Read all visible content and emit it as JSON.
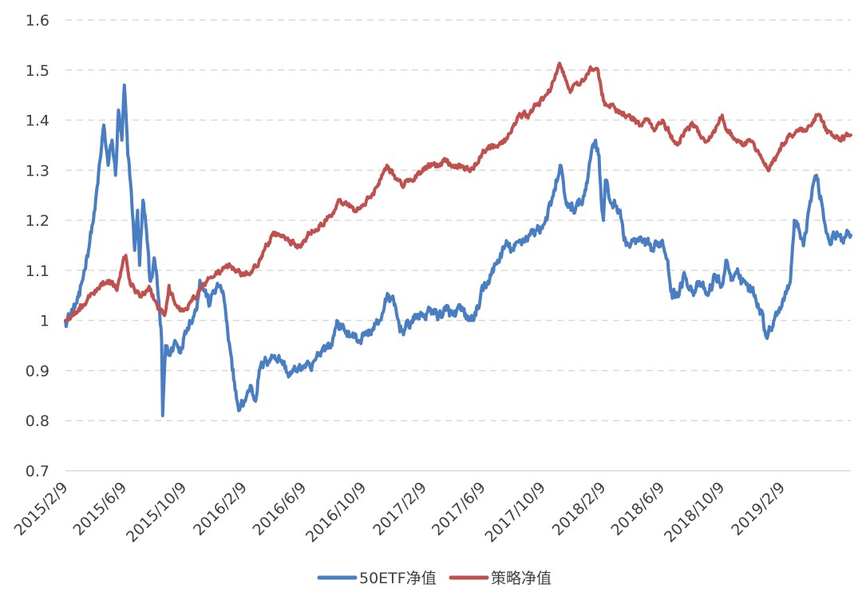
{
  "chart_data": {
    "type": "line",
    "title": "",
    "xlabel": "",
    "ylabel": "",
    "ylim": [
      0.7,
      1.6
    ],
    "yticks": [
      "0.7",
      "0.8",
      "0.9",
      "1",
      "1.1",
      "1.2",
      "1.3",
      "1.4",
      "1.5",
      "1.6"
    ],
    "xtick_labels": [
      "2015/2/9",
      "2015/6/9",
      "2015/10/9",
      "2016/2/9",
      "2016/6/9",
      "2016/10/9",
      "2017/2/9",
      "2017/6/9",
      "2017/10/9",
      "2018/2/9",
      "2018/6/9",
      "2018/10/9",
      "2019/2/9"
    ],
    "xlim": [
      "2015-02-09",
      "2019-06-28"
    ],
    "grid": true,
    "legend_position": "bottom",
    "series": [
      {
        "name": "50ETF净值",
        "color": "#4A7EC2",
        "points": [
          [
            "2015-02-09",
            1.0
          ],
          [
            "2015-02-25",
            1.02
          ],
          [
            "2015-03-10",
            1.05
          ],
          [
            "2015-03-25",
            1.13
          ],
          [
            "2015-04-10",
            1.22
          ],
          [
            "2015-04-22",
            1.33
          ],
          [
            "2015-04-28",
            1.39
          ],
          [
            "2015-05-07",
            1.31
          ],
          [
            "2015-05-15",
            1.36
          ],
          [
            "2015-05-22",
            1.29
          ],
          [
            "2015-05-28",
            1.42
          ],
          [
            "2015-06-04",
            1.36
          ],
          [
            "2015-06-09",
            1.47
          ],
          [
            "2015-06-16",
            1.33
          ],
          [
            "2015-06-23",
            1.26
          ],
          [
            "2015-06-30",
            1.14
          ],
          [
            "2015-07-06",
            1.22
          ],
          [
            "2015-07-10",
            1.11
          ],
          [
            "2015-07-17",
            1.24
          ],
          [
            "2015-07-24",
            1.18
          ],
          [
            "2015-07-31",
            1.08
          ],
          [
            "2015-08-10",
            1.12
          ],
          [
            "2015-08-17",
            1.05
          ],
          [
            "2015-08-24",
            0.96
          ],
          [
            "2015-08-26",
            0.81
          ],
          [
            "2015-09-01",
            0.95
          ],
          [
            "2015-09-10",
            0.93
          ],
          [
            "2015-09-20",
            0.96
          ],
          [
            "2015-09-30",
            0.94
          ],
          [
            "2015-10-09",
            0.97
          ],
          [
            "2015-10-20",
            1.0
          ],
          [
            "2015-11-02",
            1.02
          ],
          [
            "2015-11-10",
            1.08
          ],
          [
            "2015-11-20",
            1.06
          ],
          [
            "2015-11-30",
            1.03
          ],
          [
            "2015-12-08",
            1.06
          ],
          [
            "2015-12-22",
            1.07
          ],
          [
            "2015-12-31",
            1.03
          ],
          [
            "2016-01-07",
            0.96
          ],
          [
            "2016-01-15",
            0.9
          ],
          [
            "2016-01-22",
            0.86
          ],
          [
            "2016-01-28",
            0.82
          ],
          [
            "2016-02-09",
            0.84
          ],
          [
            "2016-02-22",
            0.87
          ],
          [
            "2016-03-01",
            0.84
          ],
          [
            "2016-03-10",
            0.9
          ],
          [
            "2016-03-25",
            0.92
          ],
          [
            "2016-04-10",
            0.93
          ],
          [
            "2016-04-25",
            0.92
          ],
          [
            "2016-05-10",
            0.89
          ],
          [
            "2016-05-25",
            0.9
          ],
          [
            "2016-06-09",
            0.91
          ],
          [
            "2016-06-24",
            0.9
          ],
          [
            "2016-07-08",
            0.93
          ],
          [
            "2016-07-20",
            0.95
          ],
          [
            "2016-08-05",
            0.95
          ],
          [
            "2016-08-15",
            1.0
          ],
          [
            "2016-08-30",
            0.98
          ],
          [
            "2016-09-15",
            0.97
          ],
          [
            "2016-09-30",
            0.96
          ],
          [
            "2016-10-09",
            0.97
          ],
          [
            "2016-10-25",
            0.98
          ],
          [
            "2016-11-10",
            1.0
          ],
          [
            "2016-11-20",
            1.03
          ],
          [
            "2016-11-29",
            1.05
          ],
          [
            "2016-12-10",
            1.03
          ],
          [
            "2016-12-20",
            0.99
          ],
          [
            "2016-12-30",
            0.98
          ],
          [
            "2017-01-15",
            1.0
          ],
          [
            "2017-01-31",
            1.01
          ],
          [
            "2017-02-09",
            1.01
          ],
          [
            "2017-02-25",
            1.02
          ],
          [
            "2017-03-10",
            1.01
          ],
          [
            "2017-03-25",
            1.02
          ],
          [
            "2017-04-09",
            1.01
          ],
          [
            "2017-04-25",
            1.02
          ],
          [
            "2017-05-10",
            1.0
          ],
          [
            "2017-05-25",
            1.01
          ],
          [
            "2017-06-09",
            1.06
          ],
          [
            "2017-06-25",
            1.09
          ],
          [
            "2017-07-10",
            1.12
          ],
          [
            "2017-07-25",
            1.15
          ],
          [
            "2017-08-10",
            1.14
          ],
          [
            "2017-08-25",
            1.16
          ],
          [
            "2017-09-10",
            1.17
          ],
          [
            "2017-09-25",
            1.18
          ],
          [
            "2017-10-09",
            1.19
          ],
          [
            "2017-10-25",
            1.23
          ],
          [
            "2017-11-03",
            1.26
          ],
          [
            "2017-11-13",
            1.31
          ],
          [
            "2017-11-24",
            1.24
          ],
          [
            "2017-12-05",
            1.22
          ],
          [
            "2017-12-20",
            1.23
          ],
          [
            "2017-12-29",
            1.24
          ],
          [
            "2018-01-10",
            1.3
          ],
          [
            "2018-01-18",
            1.35
          ],
          [
            "2018-01-24",
            1.36
          ],
          [
            "2018-01-31",
            1.33
          ],
          [
            "2018-02-06",
            1.22
          ],
          [
            "2018-02-09",
            1.2
          ],
          [
            "2018-02-13",
            1.28
          ],
          [
            "2018-02-22",
            1.24
          ],
          [
            "2018-03-05",
            1.23
          ],
          [
            "2018-03-15",
            1.22
          ],
          [
            "2018-03-23",
            1.16
          ],
          [
            "2018-04-05",
            1.15
          ],
          [
            "2018-04-20",
            1.16
          ],
          [
            "2018-05-05",
            1.15
          ],
          [
            "2018-05-20",
            1.14
          ],
          [
            "2018-06-09",
            1.16
          ],
          [
            "2018-06-20",
            1.12
          ],
          [
            "2018-06-28",
            1.06
          ],
          [
            "2018-07-10",
            1.05
          ],
          [
            "2018-07-25",
            1.09
          ],
          [
            "2018-08-10",
            1.06
          ],
          [
            "2018-08-25",
            1.07
          ],
          [
            "2018-09-10",
            1.05
          ],
          [
            "2018-09-25",
            1.09
          ],
          [
            "2018-10-09",
            1.07
          ],
          [
            "2018-10-18",
            1.12
          ],
          [
            "2018-10-30",
            1.08
          ],
          [
            "2018-11-15",
            1.09
          ],
          [
            "2018-11-30",
            1.07
          ],
          [
            "2018-12-15",
            1.05
          ],
          [
            "2018-12-28",
            1.02
          ],
          [
            "2019-01-04",
            0.98
          ],
          [
            "2019-01-10",
            0.97
          ],
          [
            "2019-01-25",
            1.01
          ],
          [
            "2019-02-09",
            1.04
          ],
          [
            "2019-02-25",
            1.08
          ],
          [
            "2019-03-05",
            1.2
          ],
          [
            "2019-03-15",
            1.18
          ],
          [
            "2019-03-25",
            1.16
          ],
          [
            "2019-04-05",
            1.23
          ],
          [
            "2019-04-12",
            1.27
          ],
          [
            "2019-04-19",
            1.29
          ],
          [
            "2019-04-29",
            1.24
          ],
          [
            "2019-05-07",
            1.19
          ],
          [
            "2019-05-15",
            1.16
          ],
          [
            "2019-05-25",
            1.17
          ],
          [
            "2019-06-10",
            1.16
          ],
          [
            "2019-06-20",
            1.18
          ],
          [
            "2019-06-28",
            1.17
          ]
        ]
      },
      {
        "name": "策略净值",
        "color": "#C0504D",
        "points": [
          [
            "2015-02-09",
            1.0
          ],
          [
            "2015-02-25",
            1.01
          ],
          [
            "2015-03-10",
            1.02
          ],
          [
            "2015-03-25",
            1.04
          ],
          [
            "2015-04-10",
            1.06
          ],
          [
            "2015-04-25",
            1.07
          ],
          [
            "2015-05-10",
            1.08
          ],
          [
            "2015-05-25",
            1.06
          ],
          [
            "2015-06-05",
            1.11
          ],
          [
            "2015-06-12",
            1.13
          ],
          [
            "2015-06-20",
            1.08
          ],
          [
            "2015-06-30",
            1.06
          ],
          [
            "2015-07-15",
            1.05
          ],
          [
            "2015-07-31",
            1.06
          ],
          [
            "2015-08-15",
            1.03
          ],
          [
            "2015-08-30",
            1.01
          ],
          [
            "2015-09-08",
            1.07
          ],
          [
            "2015-09-18",
            1.04
          ],
          [
            "2015-09-30",
            1.02
          ],
          [
            "2015-10-09",
            1.02
          ],
          [
            "2015-10-25",
            1.04
          ],
          [
            "2015-11-10",
            1.06
          ],
          [
            "2015-11-25",
            1.08
          ],
          [
            "2015-12-10",
            1.09
          ],
          [
            "2015-12-25",
            1.1
          ],
          [
            "2016-01-10",
            1.11
          ],
          [
            "2016-01-25",
            1.1
          ],
          [
            "2016-02-09",
            1.09
          ],
          [
            "2016-02-25",
            1.1
          ],
          [
            "2016-03-10",
            1.12
          ],
          [
            "2016-03-25",
            1.15
          ],
          [
            "2016-04-09",
            1.17
          ],
          [
            "2016-04-25",
            1.17
          ],
          [
            "2016-05-10",
            1.16
          ],
          [
            "2016-05-25",
            1.15
          ],
          [
            "2016-06-09",
            1.16
          ],
          [
            "2016-06-25",
            1.18
          ],
          [
            "2016-07-10",
            1.19
          ],
          [
            "2016-07-25",
            1.2
          ],
          [
            "2016-08-10",
            1.22
          ],
          [
            "2016-08-20",
            1.24
          ],
          [
            "2016-09-05",
            1.23
          ],
          [
            "2016-09-20",
            1.22
          ],
          [
            "2016-10-09",
            1.23
          ],
          [
            "2016-10-25",
            1.25
          ],
          [
            "2016-11-10",
            1.28
          ],
          [
            "2016-11-25",
            1.31
          ],
          [
            "2016-12-10",
            1.29
          ],
          [
            "2016-12-25",
            1.27
          ],
          [
            "2017-01-10",
            1.28
          ],
          [
            "2017-01-25",
            1.29
          ],
          [
            "2017-02-09",
            1.3
          ],
          [
            "2017-02-25",
            1.31
          ],
          [
            "2017-03-10",
            1.31
          ],
          [
            "2017-03-25",
            1.32
          ],
          [
            "2017-04-09",
            1.31
          ],
          [
            "2017-04-25",
            1.31
          ],
          [
            "2017-05-10",
            1.3
          ],
          [
            "2017-05-25",
            1.31
          ],
          [
            "2017-06-09",
            1.34
          ],
          [
            "2017-06-25",
            1.35
          ],
          [
            "2017-07-10",
            1.35
          ],
          [
            "2017-07-25",
            1.36
          ],
          [
            "2017-08-10",
            1.39
          ],
          [
            "2017-08-25",
            1.41
          ],
          [
            "2017-09-10",
            1.41
          ],
          [
            "2017-09-25",
            1.43
          ],
          [
            "2017-10-09",
            1.44
          ],
          [
            "2017-10-20",
            1.46
          ],
          [
            "2017-11-01",
            1.48
          ],
          [
            "2017-11-13",
            1.51
          ],
          [
            "2017-11-24",
            1.48
          ],
          [
            "2017-12-05",
            1.46
          ],
          [
            "2017-12-20",
            1.47
          ],
          [
            "2018-01-05",
            1.49
          ],
          [
            "2018-01-15",
            1.5
          ],
          [
            "2018-01-29",
            1.5
          ],
          [
            "2018-02-06",
            1.45
          ],
          [
            "2018-02-12",
            1.43
          ],
          [
            "2018-02-25",
            1.43
          ],
          [
            "2018-03-10",
            1.42
          ],
          [
            "2018-03-25",
            1.41
          ],
          [
            "2018-04-09",
            1.4
          ],
          [
            "2018-04-25",
            1.39
          ],
          [
            "2018-05-10",
            1.4
          ],
          [
            "2018-05-25",
            1.38
          ],
          [
            "2018-06-09",
            1.4
          ],
          [
            "2018-06-25",
            1.37
          ],
          [
            "2018-07-10",
            1.35
          ],
          [
            "2018-07-25",
            1.38
          ],
          [
            "2018-08-10",
            1.39
          ],
          [
            "2018-08-25",
            1.37
          ],
          [
            "2018-09-10",
            1.36
          ],
          [
            "2018-09-25",
            1.38
          ],
          [
            "2018-10-09",
            1.41
          ],
          [
            "2018-10-20",
            1.38
          ],
          [
            "2018-11-05",
            1.36
          ],
          [
            "2018-11-20",
            1.35
          ],
          [
            "2018-12-05",
            1.36
          ],
          [
            "2018-12-20",
            1.34
          ],
          [
            "2019-01-04",
            1.31
          ],
          [
            "2019-01-10",
            1.3
          ],
          [
            "2019-01-25",
            1.32
          ],
          [
            "2019-02-09",
            1.35
          ],
          [
            "2019-02-25",
            1.37
          ],
          [
            "2019-03-10",
            1.38
          ],
          [
            "2019-03-25",
            1.38
          ],
          [
            "2019-04-09",
            1.39
          ],
          [
            "2019-04-20",
            1.41
          ],
          [
            "2019-04-29",
            1.4
          ],
          [
            "2019-05-08",
            1.38
          ],
          [
            "2019-05-20",
            1.37
          ],
          [
            "2019-06-05",
            1.36
          ],
          [
            "2019-06-18",
            1.37
          ],
          [
            "2019-06-28",
            1.37
          ]
        ]
      }
    ]
  }
}
